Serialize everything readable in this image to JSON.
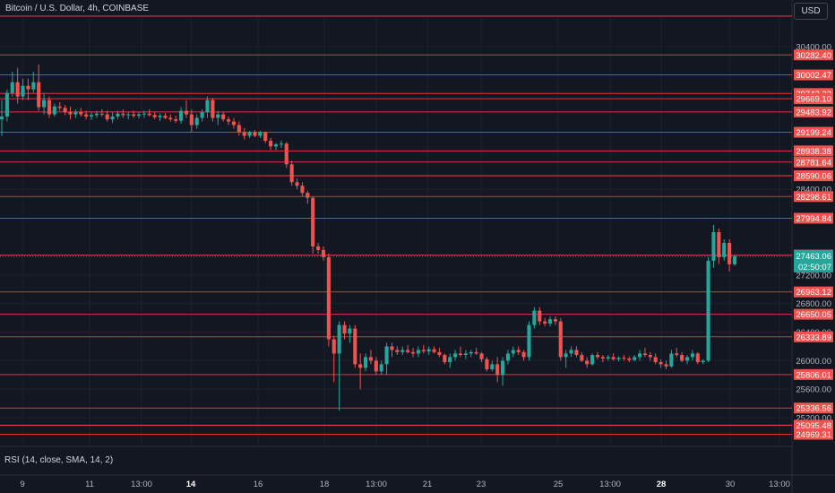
{
  "header": {
    "title": "Bitcoin / U.S. Dollar, 4h, COINBASE",
    "currency_label": "USD"
  },
  "indicator": {
    "label": "RSI (14, close, SMA, 14, 2)"
  },
  "colors": {
    "background": "#131722",
    "up": "#26a69a",
    "down": "#ef5350",
    "level_line": "#f23645",
    "axis_text": "#b2b5be"
  },
  "chart_data": {
    "type": "candlestick",
    "title": "Bitcoin / U.S. Dollar, 4h, COINBASE",
    "ylim": [
      24900,
      30700
    ],
    "y_tick_labels": [
      "30400.00",
      "28400.00",
      "27200.00",
      "26800.00",
      "26400.00",
      "26000.00",
      "25600.00",
      "25200.00"
    ],
    "x_tick_labels": [
      "9",
      "11",
      "13:00",
      "14",
      "16",
      "18",
      "13:00",
      "21",
      "23",
      "25",
      "13:00",
      "28",
      "30",
      "13:00"
    ],
    "x_tick_bold": [
      "14",
      "28"
    ],
    "horizontal_levels": [
      30282.4,
      30002.47,
      29742.23,
      29669.1,
      29483.92,
      29199.24,
      28938.38,
      28781.64,
      28590.37,
      28590.06,
      28298.61,
      27994.84,
      27478.98,
      26963.12,
      26650.05,
      26333.89,
      25806.01,
      25336.56,
      25095.72,
      25095.48,
      24969.31
    ],
    "current_price": {
      "value": 27463.06,
      "label": "27463.06",
      "countdown": "02:50:07"
    },
    "candles": [
      [
        29380,
        29650,
        29150,
        29420
      ],
      [
        29420,
        29800,
        29350,
        29750
      ],
      [
        29750,
        30050,
        29700,
        29900
      ],
      [
        29900,
        30100,
        29600,
        29700
      ],
      [
        29700,
        29950,
        29650,
        29850
      ],
      [
        29850,
        29950,
        29650,
        29800
      ],
      [
        29800,
        30050,
        29750,
        29900
      ],
      [
        29900,
        30150,
        29500,
        29550
      ],
      [
        29550,
        29750,
        29450,
        29650
      ],
      [
        29650,
        29700,
        29400,
        29450
      ],
      [
        29450,
        29600,
        29420,
        29560
      ],
      [
        29560,
        29620,
        29500,
        29540
      ],
      [
        29540,
        29580,
        29440,
        29480
      ],
      [
        29480,
        29560,
        29380,
        29450
      ],
      [
        29450,
        29520,
        29400,
        29480
      ],
      [
        29480,
        29540,
        29420,
        29450
      ],
      [
        29450,
        29500,
        29380,
        29420
      ],
      [
        29420,
        29480,
        29370,
        29440
      ],
      [
        29440,
        29500,
        29400,
        29460
      ],
      [
        29460,
        29520,
        29420,
        29450
      ],
      [
        29450,
        29500,
        29350,
        29380
      ],
      [
        29380,
        29480,
        29330,
        29420
      ],
      [
        29420,
        29500,
        29380,
        29460
      ],
      [
        29460,
        29520,
        29400,
        29440
      ],
      [
        29440,
        29480,
        29380,
        29450
      ],
      [
        29450,
        29500,
        29400,
        29430
      ],
      [
        29430,
        29480,
        29390,
        29450
      ],
      [
        29450,
        29500,
        29400,
        29460
      ],
      [
        29460,
        29520,
        29420,
        29440
      ],
      [
        29440,
        29480,
        29380,
        29410
      ],
      [
        29410,
        29460,
        29360,
        29430
      ],
      [
        29430,
        29470,
        29380,
        29400
      ],
      [
        29400,
        29450,
        29350,
        29380
      ],
      [
        29380,
        29430,
        29330,
        29360
      ],
      [
        29360,
        29550,
        29320,
        29500
      ],
      [
        29500,
        29650,
        29400,
        29450
      ],
      [
        29450,
        29520,
        29200,
        29300
      ],
      [
        29300,
        29450,
        29250,
        29400
      ],
      [
        29400,
        29520,
        29350,
        29480
      ],
      [
        29480,
        29700,
        29400,
        29650
      ],
      [
        29650,
        29680,
        29350,
        29400
      ],
      [
        29400,
        29500,
        29300,
        29450
      ],
      [
        29450,
        29480,
        29350,
        29380
      ],
      [
        29380,
        29420,
        29300,
        29350
      ],
      [
        29350,
        29400,
        29250,
        29300
      ],
      [
        29300,
        29350,
        29150,
        29200
      ],
      [
        29200,
        29260,
        29100,
        29150
      ],
      [
        29150,
        29220,
        29120,
        29200
      ],
      [
        29200,
        29230,
        29130,
        29150
      ],
      [
        29150,
        29220,
        29120,
        29200
      ],
      [
        29200,
        29210,
        29050,
        29080
      ],
      [
        29080,
        29120,
        28950,
        29000
      ],
      [
        29000,
        29050,
        28950,
        29030
      ],
      [
        29030,
        29080,
        28980,
        29040
      ],
      [
        29040,
        29060,
        28700,
        28750
      ],
      [
        28750,
        28800,
        28450,
        28500
      ],
      [
        28500,
        28550,
        28400,
        28450
      ],
      [
        28450,
        28500,
        28300,
        28350
      ],
      [
        28350,
        28380,
        28200,
        28280
      ],
      [
        28280,
        28300,
        27500,
        27600
      ],
      [
        27600,
        27650,
        27500,
        27550
      ],
      [
        27550,
        27600,
        27400,
        27450
      ],
      [
        27450,
        27500,
        26200,
        26300
      ],
      [
        26300,
        26350,
        25700,
        26100
      ],
      [
        26100,
        26550,
        25300,
        26500
      ],
      [
        26500,
        26550,
        26300,
        26380
      ],
      [
        26380,
        26500,
        26250,
        26450
      ],
      [
        26450,
        26500,
        25900,
        25950
      ],
      [
        25950,
        26100,
        25600,
        25900
      ],
      [
        25900,
        26100,
        25850,
        26050
      ],
      [
        26050,
        26150,
        25950,
        26000
      ],
      [
        26000,
        26050,
        25800,
        25850
      ],
      [
        25850,
        26000,
        25800,
        25950
      ],
      [
        25950,
        26250,
        25800,
        26200
      ],
      [
        26200,
        26250,
        26050,
        26150
      ],
      [
        26150,
        26200,
        26080,
        26120
      ],
      [
        26120,
        26200,
        26080,
        26150
      ],
      [
        26150,
        26220,
        26100,
        26120
      ],
      [
        26120,
        26180,
        26050,
        26100
      ],
      [
        26100,
        26200,
        26050,
        26150
      ],
      [
        26150,
        26220,
        26100,
        26130
      ],
      [
        26130,
        26200,
        26080,
        26160
      ],
      [
        26160,
        26200,
        26100,
        26120
      ],
      [
        26120,
        26180,
        26050,
        26080
      ],
      [
        26080,
        26100,
        25950,
        25980
      ],
      [
        25980,
        26100,
        25900,
        26050
      ],
      [
        26050,
        26150,
        26000,
        26100
      ],
      [
        26100,
        26200,
        26050,
        26080
      ],
      [
        26080,
        26150,
        26020,
        26100
      ],
      [
        26100,
        26150,
        26050,
        26120
      ],
      [
        26120,
        26180,
        26080,
        26100
      ],
      [
        26100,
        26120,
        25980,
        26020
      ],
      [
        26020,
        26050,
        25850,
        25880
      ],
      [
        25880,
        26000,
        25850,
        25950
      ],
      [
        25950,
        26050,
        25700,
        25800
      ],
      [
        25800,
        26050,
        25650,
        26000
      ],
      [
        26000,
        26150,
        25950,
        26100
      ],
      [
        26100,
        26200,
        26050,
        26150
      ],
      [
        26150,
        26200,
        26080,
        26120
      ],
      [
        26120,
        26150,
        26000,
        26050
      ],
      [
        26050,
        26550,
        26000,
        26500
      ],
      [
        26500,
        26750,
        26450,
        26700
      ],
      [
        26700,
        26750,
        26500,
        26550
      ],
      [
        26550,
        26600,
        26480,
        26520
      ],
      [
        26520,
        26620,
        26480,
        26580
      ],
      [
        26580,
        26620,
        26500,
        26550
      ],
      [
        26550,
        26600,
        26000,
        26050
      ],
      [
        26050,
        26150,
        25900,
        26100
      ],
      [
        26100,
        26200,
        26050,
        26150
      ],
      [
        26150,
        26200,
        26050,
        26080
      ],
      [
        26080,
        26120,
        25980,
        26000
      ],
      [
        26000,
        26050,
        25900,
        25950
      ],
      [
        25950,
        26100,
        25930,
        26080
      ],
      [
        26080,
        26120,
        26020,
        26050
      ],
      [
        26050,
        26080,
        25980,
        26030
      ],
      [
        26030,
        26080,
        26000,
        26050
      ],
      [
        26050,
        26100,
        26000,
        26020
      ],
      [
        26020,
        26060,
        25990,
        26040
      ],
      [
        26040,
        26080,
        26000,
        26030
      ],
      [
        26030,
        26060,
        25980,
        26010
      ],
      [
        26010,
        26080,
        25990,
        26050
      ],
      [
        26050,
        26150,
        26000,
        26100
      ],
      [
        26100,
        26180,
        26050,
        26080
      ],
      [
        26080,
        26120,
        26000,
        26050
      ],
      [
        26050,
        26100,
        25950,
        25980
      ],
      [
        25980,
        26020,
        25900,
        25950
      ],
      [
        25950,
        26000,
        25880,
        25920
      ],
      [
        25920,
        26150,
        25900,
        26100
      ],
      [
        26100,
        26180,
        26050,
        26080
      ],
      [
        26080,
        26120,
        25980,
        26000
      ],
      [
        26000,
        26080,
        25950,
        26050
      ],
      [
        26050,
        26150,
        26000,
        26100
      ],
      [
        26100,
        26120,
        25950,
        25980
      ],
      [
        25980,
        26020,
        25950,
        26000
      ],
      [
        26000,
        27450,
        25980,
        27400
      ],
      [
        27400,
        27900,
        27300,
        27800
      ],
      [
        27800,
        27850,
        27350,
        27450
      ],
      [
        27450,
        27700,
        27400,
        27650
      ],
      [
        27650,
        27700,
        27250,
        27350
      ],
      [
        27350,
        27480,
        27330,
        27463
      ]
    ]
  }
}
